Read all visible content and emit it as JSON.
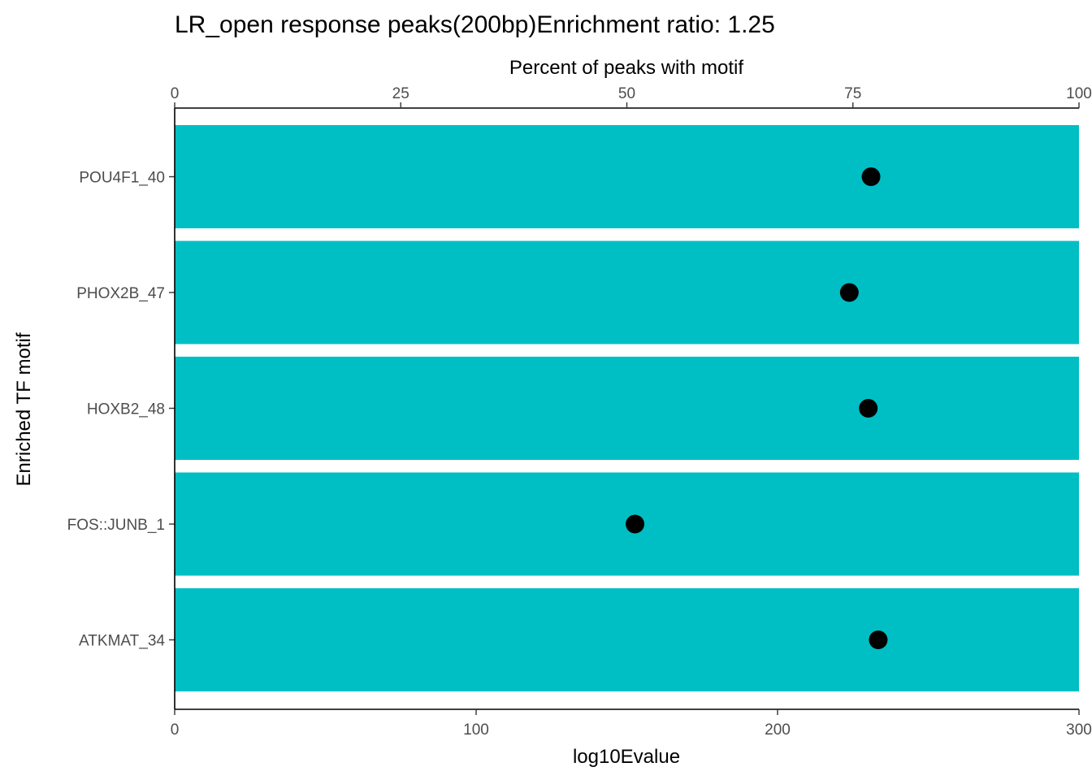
{
  "chart_data": {
    "type": "bar",
    "orientation": "horizontal",
    "title": "LR_open response peaks(200bp)Enrichment ratio: 1.25",
    "ylabel": "Enriched TF motif",
    "xlabel": "log10Evalue",
    "secondary_xlabel": "Percent of peaks with motif",
    "categories": [
      "POU4F1_40",
      "PHOX2B_47",
      "HOXB2_48",
      "FOS::JUNB_1",
      "ATKMAT_34"
    ],
    "bar_color": "#00BFC4",
    "point_color": "#000000",
    "series": [
      {
        "type": "bar",
        "axis": "log10Evalue",
        "values": [
          300,
          300,
          300,
          300,
          300
        ]
      },
      {
        "type": "scatter",
        "axis": "Percent of peaks with motif",
        "values": [
          77,
          74.6,
          76.7,
          50.9,
          77.8
        ]
      }
    ],
    "xlim": [
      0,
      300
    ],
    "xticks": [
      0,
      100,
      200,
      300
    ],
    "secondary_xlim": [
      0,
      100
    ],
    "secondary_xticks": [
      0,
      25,
      50,
      75,
      100
    ],
    "grid": false
  }
}
